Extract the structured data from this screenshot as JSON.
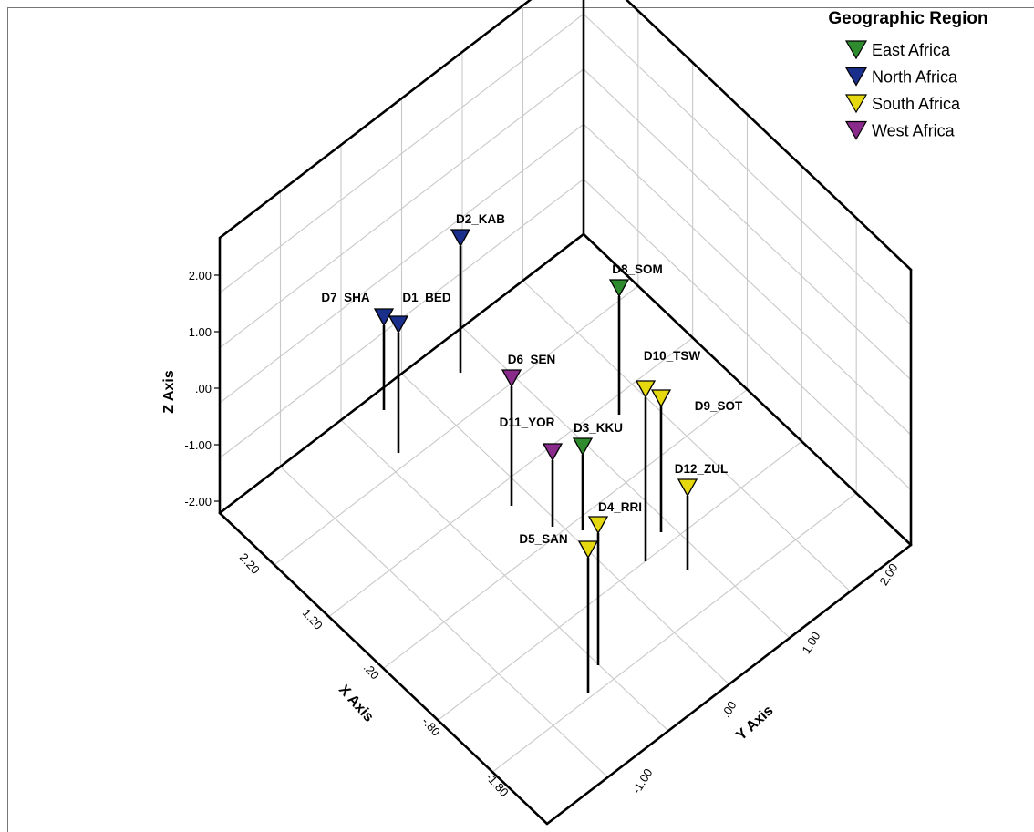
{
  "chart_data": {
    "type": "scatter",
    "subtype": "3d-scatter-with-drop-lines",
    "title": "",
    "xlabel": "X Axis",
    "ylabel": "Y Axis",
    "zlabel": "Z Axis",
    "x_ticks": [
      "2.20",
      "1.20",
      ".20",
      "-.80",
      "-1.80"
    ],
    "y_ticks": [
      "-1.00",
      ".00",
      "1.00",
      "2.00"
    ],
    "z_ticks": [
      "2.00",
      "1.00",
      ".00",
      "-1.00",
      "-2.00"
    ],
    "xlim": [
      -2.3,
      2.5
    ],
    "ylim": [
      -1.6,
      2.3
    ],
    "zlim": [
      -2.0,
      3.3
    ],
    "grid": true,
    "legend": {
      "title": "Geographic Region",
      "position": "top-right",
      "entries": [
        {
          "name": "East Africa",
          "color": "#2e8b2e"
        },
        {
          "name": "North Africa",
          "color": "#1a2f8c"
        },
        {
          "name": "South Africa",
          "color": "#e6d80f"
        },
        {
          "name": "West Africa",
          "color": "#8a2a8a"
        }
      ]
    },
    "points": [
      {
        "label": "D1_BED",
        "region": "North Africa",
        "x": 1.4,
        "y": -1.5,
        "z": 1.1
      },
      {
        "label": "D2_KAB",
        "region": "North Africa",
        "x": 1.7,
        "y": -1.0,
        "z": 2.6
      },
      {
        "label": "D3_KKU",
        "region": "East Africa",
        "x": -0.9,
        "y": 0.1,
        "z": 0.9
      },
      {
        "label": "D4_RRI",
        "region": "South Africa",
        "x": -1.9,
        "y": -0.4,
        "z": 1.2
      },
      {
        "label": "D5_SAN",
        "region": "South Africa",
        "x": -1.7,
        "y": -0.7,
        "z": 1.6
      },
      {
        "label": "D6_SEN",
        "region": "West Africa",
        "x": 0.1,
        "y": -0.4,
        "z": 0.9
      },
      {
        "label": "D7_SHA",
        "region": "North Africa",
        "x": 1.5,
        "y": -1.6,
        "z": 1.0
      },
      {
        "label": "D8_SOM",
        "region": "East Africa",
        "x": 0.5,
        "y": 0.4,
        "z": 1.6
      },
      {
        "label": "D9_SOT",
        "region": "South Africa",
        "x": -1.2,
        "y": 0.7,
        "z": 1.3
      },
      {
        "label": "D10_TSW",
        "region": "South Africa",
        "x": -1.4,
        "y": 0.6,
        "z": 1.4
      },
      {
        "label": "D11_YOR",
        "region": "West Africa",
        "x": -0.4,
        "y": -0.6,
        "z": 0.8
      },
      {
        "label": "D12_ZUL",
        "region": "South Africa",
        "x": -1.6,
        "y": 0.9,
        "z": 0.7
      }
    ]
  }
}
